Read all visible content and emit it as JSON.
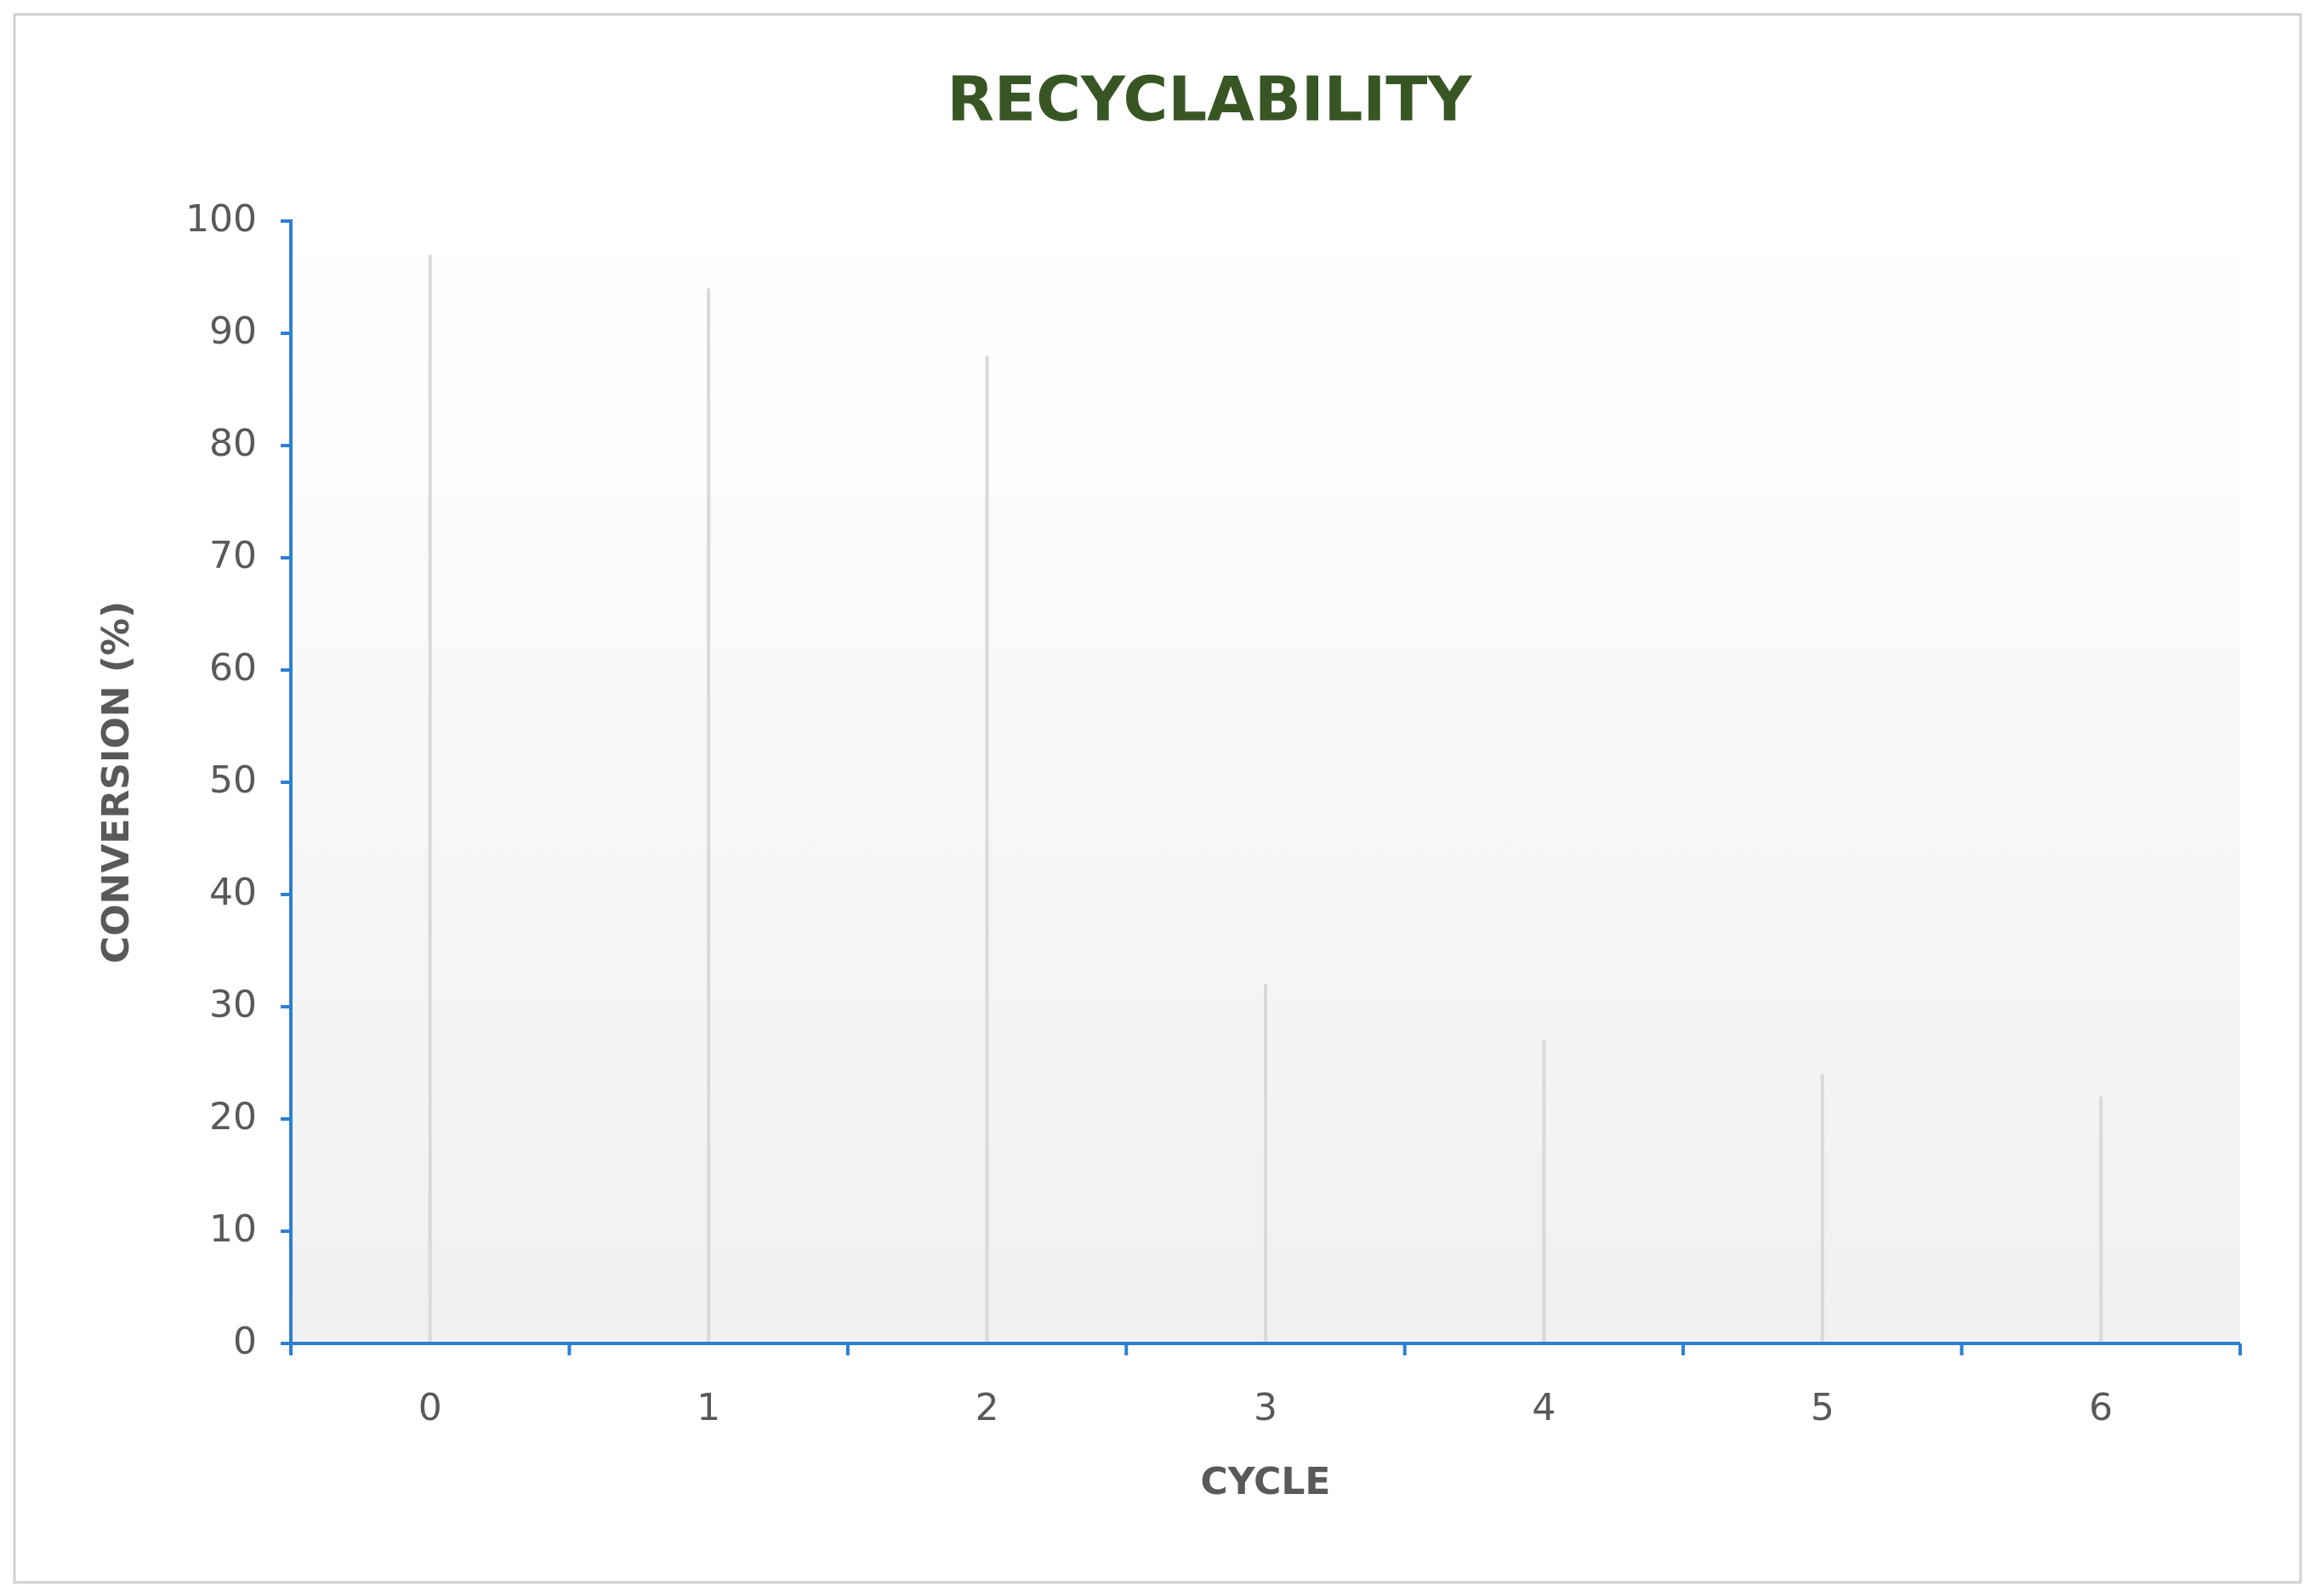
{
  "chart_data": {
    "type": "line",
    "title": "RECYCLABILITY",
    "x_label": "CYCLE",
    "y_label": "CONVERSION (%)",
    "categories": [
      "0",
      "1",
      "2",
      "3",
      "4",
      "5",
      "6"
    ],
    "series": [
      {
        "name": "Conversion",
        "color": "#595959",
        "values": [
          97,
          94,
          88,
          32,
          27,
          24,
          22
        ]
      }
    ],
    "ylim": [
      0,
      100
    ],
    "yticks": [
      0,
      10,
      20,
      30,
      40,
      50,
      60,
      70,
      80,
      90,
      100
    ],
    "drop_lines": true,
    "axis_color": "#2e7fd0"
  }
}
